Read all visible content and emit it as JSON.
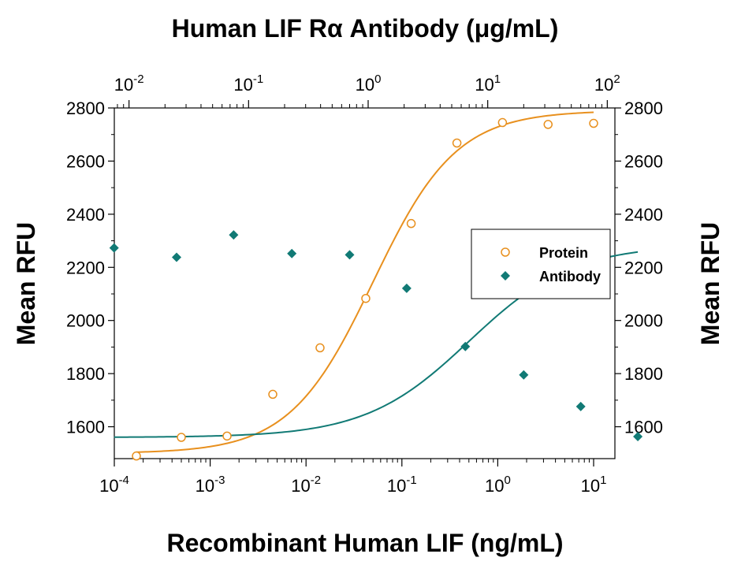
{
  "chart_data": {
    "type": "scatter",
    "title": "Human LIF Rα Antibody (μg/mL)",
    "xlabel": "Recombinant Human LIF (ng/mL)",
    "ylabel": "Mean RFU",
    "y2label": "Mean RFU",
    "x_scale": "log",
    "xlim": [
      0.0001,
      10
    ],
    "x2_scale": "log",
    "x2lim": [
      0.005,
      200
    ],
    "ylim": [
      1480,
      2800
    ],
    "y_ticks": [
      1600,
      1800,
      2000,
      2200,
      2400,
      2600,
      2800
    ],
    "x_ticks": [
      {
        "value": 0.0001,
        "base": "10",
        "exp": "-4"
      },
      {
        "value": 0.001,
        "base": "10",
        "exp": "-3"
      },
      {
        "value": 0.01,
        "base": "10",
        "exp": "-2"
      },
      {
        "value": 0.1,
        "base": "10",
        "exp": "-1"
      },
      {
        "value": 1,
        "base": "10",
        "exp": "0"
      },
      {
        "value": 10,
        "base": "10",
        "exp": "1"
      }
    ],
    "x2_ticks": [
      {
        "value": 0.01,
        "base": "10",
        "exp": "-2"
      },
      {
        "value": 0.1,
        "base": "10",
        "exp": "-1"
      },
      {
        "value": 1,
        "base": "10",
        "exp": "0"
      },
      {
        "value": 10,
        "base": "10",
        "exp": "1"
      },
      {
        "value": 100,
        "base": "10",
        "exp": "2"
      }
    ],
    "legend_position": "right",
    "series": [
      {
        "name": "Protein",
        "axis": "bottom",
        "marker": "open-circle",
        "color": "#E8901E",
        "points": [
          {
            "x": 0.00017,
            "y": 1490
          },
          {
            "x": 0.0005,
            "y": 1560
          },
          {
            "x": 0.0015,
            "y": 1565
          },
          {
            "x": 0.0045,
            "y": 1722
          },
          {
            "x": 0.014,
            "y": 1897
          },
          {
            "x": 0.042,
            "y": 2083
          },
          {
            "x": 0.125,
            "y": 2365
          },
          {
            "x": 0.375,
            "y": 2668
          },
          {
            "x": 1.12,
            "y": 2745
          },
          {
            "x": 3.35,
            "y": 2738
          },
          {
            "x": 10,
            "y": 2742
          }
        ],
        "fit": {
          "bottom": 1500,
          "top": 2790,
          "ec50": 0.05,
          "hill": 1.0
        }
      },
      {
        "name": "Antibody",
        "axis": "top",
        "marker": "filled-diamond",
        "color": "#117A75",
        "points": [
          {
            "x": 0.0075,
            "y": 2273
          },
          {
            "x": 0.025,
            "y": 2238
          },
          {
            "x": 0.075,
            "y": 2322
          },
          {
            "x": 0.23,
            "y": 2252
          },
          {
            "x": 0.7,
            "y": 2247
          },
          {
            "x": 2.1,
            "y": 2121
          },
          {
            "x": 6.5,
            "y": 1902
          },
          {
            "x": 20,
            "y": 1795
          },
          {
            "x": 60,
            "y": 1676
          },
          {
            "x": 180,
            "y": 1563
          }
        ],
        "fit": {
          "top": 2285,
          "bottom": 1560,
          "ec50": 7.0,
          "hill": 1.0
        }
      }
    ]
  }
}
